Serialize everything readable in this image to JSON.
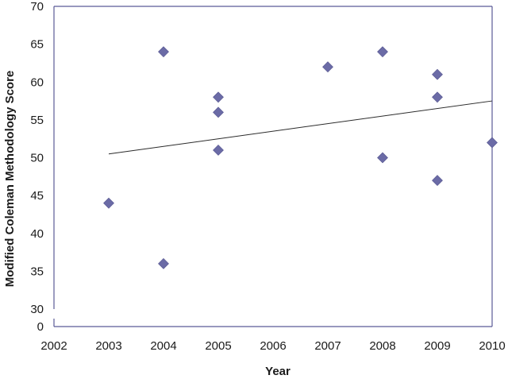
{
  "chart_data": {
    "type": "scatter",
    "title": "",
    "xlabel": "Year",
    "ylabel": "Modified Coleman Methodology Score",
    "x_ticks": [
      "2002",
      "2003",
      "2004",
      "2005",
      "2006",
      "2007",
      "2008",
      "2009",
      "2010"
    ],
    "y_ticks": [
      "0",
      "30",
      "35",
      "40",
      "45",
      "50",
      "55",
      "60",
      "65",
      "70"
    ],
    "y_axis_break": true,
    "xlim": [
      2002,
      2010
    ],
    "ylim_upper": [
      30,
      70
    ],
    "ylim_lower_label": 0,
    "grid": false,
    "legend": "none",
    "marker": "diamond",
    "marker_color": "#6b6ba6",
    "axis_color": "#5a5a96",
    "series": [
      {
        "points": [
          {
            "x": 2003,
            "y": 44
          },
          {
            "x": 2004,
            "y": 64
          },
          {
            "x": 2004,
            "y": 36
          },
          {
            "x": 2005,
            "y": 58
          },
          {
            "x": 2005,
            "y": 56
          },
          {
            "x": 2005,
            "y": 51
          },
          {
            "x": 2007,
            "y": 62
          },
          {
            "x": 2008,
            "y": 64
          },
          {
            "x": 2008,
            "y": 50
          },
          {
            "x": 2009,
            "y": 61
          },
          {
            "x": 2009,
            "y": 58
          },
          {
            "x": 2009,
            "y": 47
          },
          {
            "x": 2010,
            "y": 52
          }
        ]
      }
    ],
    "trendline": {
      "x_start": 2003,
      "y_start": 50.5,
      "x_end": 2010,
      "y_end": 57.5
    }
  }
}
